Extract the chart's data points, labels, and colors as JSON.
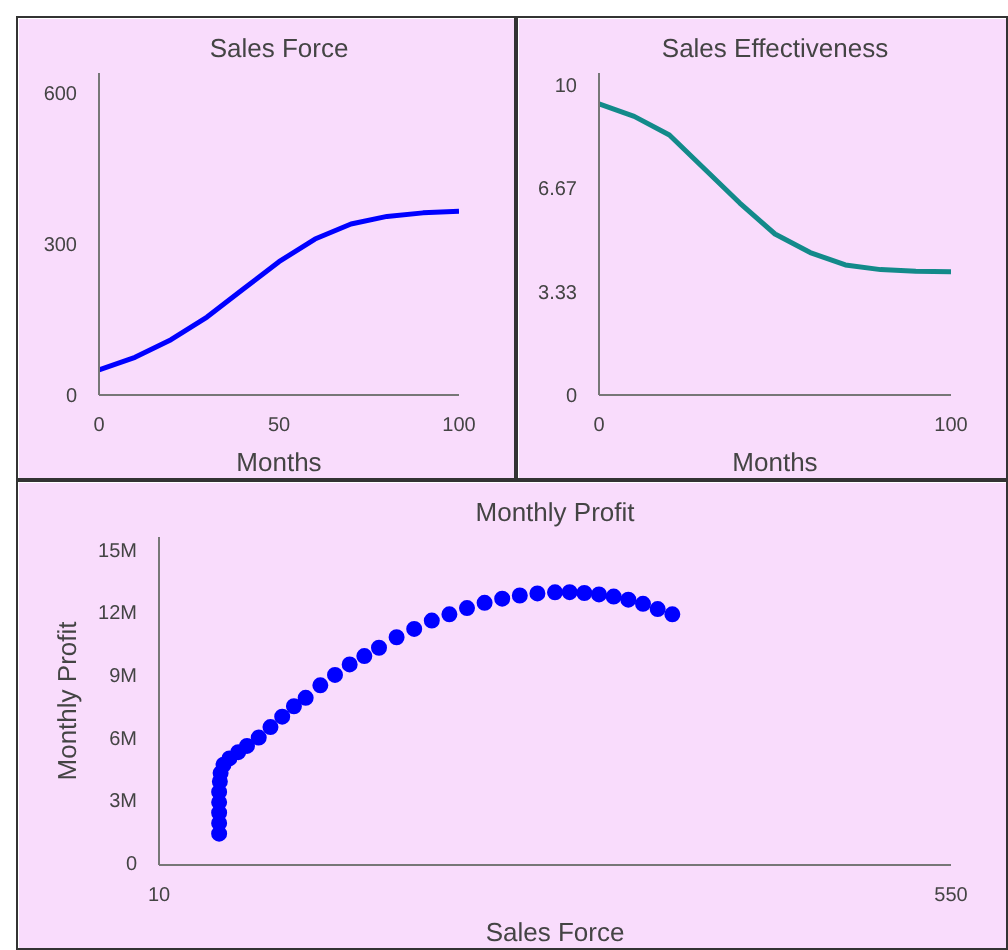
{
  "chart_data": [
    {
      "type": "line",
      "title": "Sales Force",
      "xlabel": "Months",
      "xlim": [
        0,
        100
      ],
      "ylim": [
        0,
        640
      ],
      "xticks": [
        0,
        50,
        100
      ],
      "yticks": [
        0,
        300,
        600
      ],
      "series": [
        {
          "color": "#0000ff",
          "x": [
            0,
            10,
            20,
            30,
            40,
            50,
            60,
            70,
            80,
            90,
            100
          ],
          "values": [
            50,
            75,
            110,
            155,
            210,
            265,
            310,
            340,
            355,
            362,
            365
          ]
        }
      ]
    },
    {
      "type": "line",
      "title": "Sales Effectiveness",
      "xlabel": "Months",
      "xlim": [
        0,
        100
      ],
      "ylim": [
        0,
        10.4
      ],
      "xticks": [
        0,
        100
      ],
      "yticks": [
        0,
        3.33,
        6.67,
        10
      ],
      "series": [
        {
          "color": "#138a8a",
          "x": [
            0,
            10,
            20,
            30,
            40,
            50,
            60,
            70,
            80,
            90,
            100
          ],
          "values": [
            9.4,
            9.0,
            8.4,
            7.3,
            6.2,
            5.2,
            4.6,
            4.2,
            4.05,
            4.0,
            3.98
          ]
        }
      ]
    },
    {
      "type": "scatter",
      "title": "Monthly Profit",
      "xlabel": "Sales Force",
      "ylabel": "Monthly Profit",
      "marker": "circle",
      "xlim": [
        10,
        550
      ],
      "ylim": [
        0,
        15700000
      ],
      "xticks": [
        10,
        550
      ],
      "yticks": [
        {
          "value": 0,
          "label": "0"
        },
        {
          "value": 3000000,
          "label": "3M"
        },
        {
          "value": 6000000,
          "label": "6M"
        },
        {
          "value": 9000000,
          "label": "9M"
        },
        {
          "value": 12000000,
          "label": "12M"
        },
        {
          "value": 15000000,
          "label": "15M"
        }
      ],
      "series": [
        {
          "color": "#0000ff",
          "x": [
            51,
            51,
            51,
            51,
            51,
            51.5,
            52,
            54,
            58,
            64,
            70,
            78,
            86,
            94,
            102,
            110,
            120,
            130,
            140,
            150,
            160,
            172,
            184,
            196,
            208,
            220,
            232,
            244,
            256,
            268,
            280,
            290,
            300,
            310,
            320,
            330,
            340,
            350,
            360
          ],
          "values": [
            1500000,
            2000000,
            2500000,
            3000000,
            3500000,
            4000000,
            4400000,
            4800000,
            5100000,
            5400000,
            5700000,
            6100000,
            6600000,
            7100000,
            7600000,
            8000000,
            8600000,
            9100000,
            9600000,
            10000000,
            10400000,
            10900000,
            11300000,
            11700000,
            12000000,
            12300000,
            12550000,
            12750000,
            12900000,
            13000000,
            13050000,
            13060000,
            13020000,
            12950000,
            12850000,
            12700000,
            12500000,
            12250000,
            12000000
          ]
        }
      ]
    }
  ]
}
